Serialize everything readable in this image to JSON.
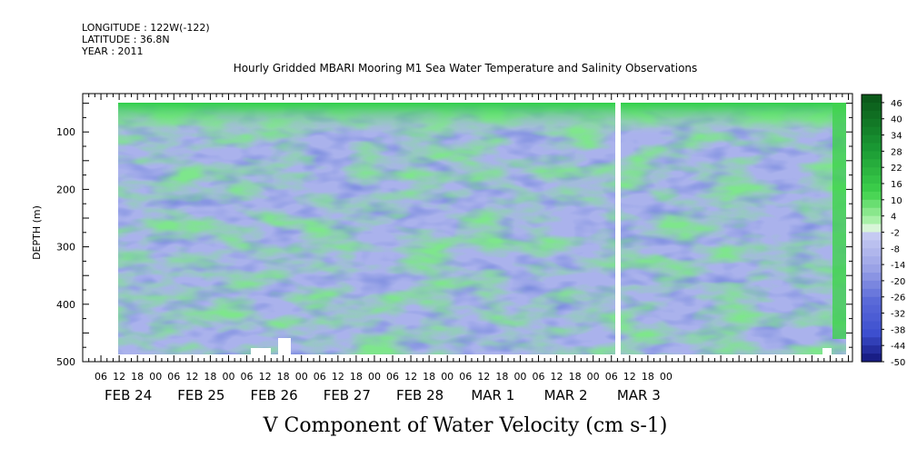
{
  "header": {
    "longitude": "LONGITUDE : 122W(-122)",
    "latitude": "LATITUDE : 36.8N",
    "year": "YEAR : 2011"
  },
  "chart_data": {
    "type": "heatmap",
    "title": "Hourly Gridded MBARI Mooring M1 Sea Water Temperature and Salinity Observations",
    "xlabel": "V Component of Water Velocity (cm s-1)",
    "ylabel": "DEPTH (m)",
    "ylim": [
      500,
      0
    ],
    "y_ticks": [
      100,
      200,
      300,
      400,
      500
    ],
    "x_hour_ticks": [
      "06",
      "12",
      "18",
      "00",
      "06",
      "12",
      "18",
      "00",
      "06",
      "12",
      "18",
      "00",
      "06",
      "12",
      "18",
      "00",
      "06",
      "12",
      "18",
      "00",
      "06",
      "12",
      "18",
      "00",
      "06",
      "12",
      "18",
      "00",
      "06",
      "12",
      "18",
      "00"
    ],
    "x_day_labels": [
      "FEB 24",
      "FEB 25",
      "FEB 26",
      "FEB 27",
      "FEB 28",
      "MAR  1",
      "MAR  2",
      "MAR  3"
    ],
    "colorbar_labels": [
      "46",
      "40",
      "34",
      "28",
      "22",
      "16",
      "10",
      "4",
      "-2",
      "-8",
      "-14",
      "-20",
      "-26",
      "-32",
      "-38",
      "-44",
      "-50"
    ],
    "colorbar_range": [
      -50,
      49
    ],
    "colors": {
      "strong_negative": "#0d0d6e",
      "negative": "#3d4fcf",
      "weak_negative": "#9aa2e6",
      "near_zero": "#c5caf2",
      "weak_positive": "#a8f0a8",
      "positive": "#3fd24c",
      "strong_positive": "#0b5a1a"
    }
  }
}
